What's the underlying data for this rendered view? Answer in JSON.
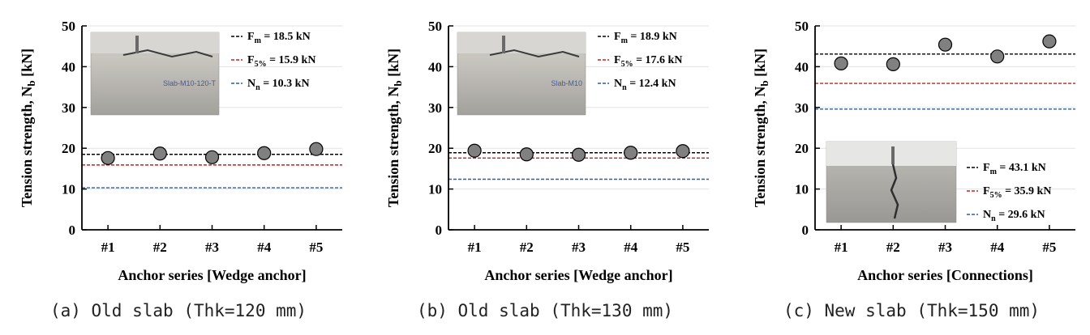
{
  "colors": {
    "mean_line": "#000000",
    "f5_line": "#cc1f1f",
    "nn_line": "#2f5f9e",
    "marker_fill": "#808080",
    "marker_stroke": "#000000"
  },
  "chart_data": [
    {
      "type": "scatter",
      "categories": [
        "#1",
        "#2",
        "#3",
        "#4",
        "#5"
      ],
      "values": [
        17.6,
        18.7,
        17.8,
        18.8,
        19.8
      ],
      "xlabel": "Anchor series [Wedge anchor]",
      "ylabel": "Tension strength, N",
      "ylabel_sub": "b",
      "ylabel_unit": " [kN]",
      "ylim": [
        0,
        50
      ],
      "yticks": [
        0,
        10,
        20,
        30,
        40,
        50
      ],
      "grid": true,
      "caption": "(a) Old slab (Thk=120 mm)",
      "photo": "slab test photo",
      "photo_label": "Slab-M10-120-T",
      "photo_position": "top-left",
      "legend_position": "top-right",
      "reference_lines": [
        {
          "base": "F",
          "sub": "m",
          "text": " = 18.5 kN",
          "value": 18.5,
          "color": "#000000"
        },
        {
          "base": "F",
          "sub": "5%",
          "text": " = 15.9 kN",
          "value": 15.9,
          "color": "#cc1f1f"
        },
        {
          "base": "N",
          "sub": "n",
          "text": " = 10.3 kN",
          "value": 10.3,
          "color": "#2f5f9e"
        }
      ]
    },
    {
      "type": "scatter",
      "categories": [
        "#1",
        "#2",
        "#3",
        "#4",
        "#5"
      ],
      "values": [
        19.4,
        18.5,
        18.4,
        18.9,
        19.3
      ],
      "xlabel": "Anchor series [Wedge anchor]",
      "ylabel": "Tension strength, N",
      "ylabel_sub": "b",
      "ylabel_unit": " [kN]",
      "ylim": [
        0,
        50
      ],
      "yticks": [
        0,
        10,
        20,
        30,
        40,
        50
      ],
      "grid": true,
      "caption": "(b) Old slab (Thk=130 mm)",
      "photo": "slab test photo",
      "photo_label": "Slab-M10",
      "photo_position": "top-left",
      "legend_position": "top-right",
      "reference_lines": [
        {
          "base": "F",
          "sub": "m",
          "text": " = 18.9 kN",
          "value": 18.9,
          "color": "#000000"
        },
        {
          "base": "F",
          "sub": "5%",
          "text": " = 17.6 kN",
          "value": 17.6,
          "color": "#cc1f1f"
        },
        {
          "base": "N",
          "sub": "n",
          "text": " = 12.4 kN",
          "value": 12.4,
          "color": "#2f5f9e"
        }
      ]
    },
    {
      "type": "scatter",
      "categories": [
        "#1",
        "#2",
        "#3",
        "#4",
        "#5"
      ],
      "values": [
        40.8,
        40.6,
        45.4,
        42.5,
        46.2
      ],
      "xlabel": "Anchor series [Connections]",
      "ylabel": "Tension strength, N",
      "ylabel_sub": "b",
      "ylabel_unit": " [kN]",
      "ylim": [
        0,
        50
      ],
      "yticks": [
        0,
        10,
        20,
        30,
        40,
        50
      ],
      "grid": true,
      "caption": "(c) New slab (Thk=150 mm)",
      "photo": "slab test photo",
      "photo_label": "",
      "photo_position": "bottom-left",
      "legend_position": "bottom-right",
      "reference_lines": [
        {
          "base": "F",
          "sub": "m",
          "text": " = 43.1 kN",
          "value": 43.1,
          "color": "#000000"
        },
        {
          "base": "F",
          "sub": "5%",
          "text": " = 35.9 kN",
          "value": 35.9,
          "color": "#cc1f1f"
        },
        {
          "base": "N",
          "sub": "n",
          "text": " = 29.6 kN",
          "value": 29.6,
          "color": "#2f5f9e"
        }
      ]
    }
  ]
}
